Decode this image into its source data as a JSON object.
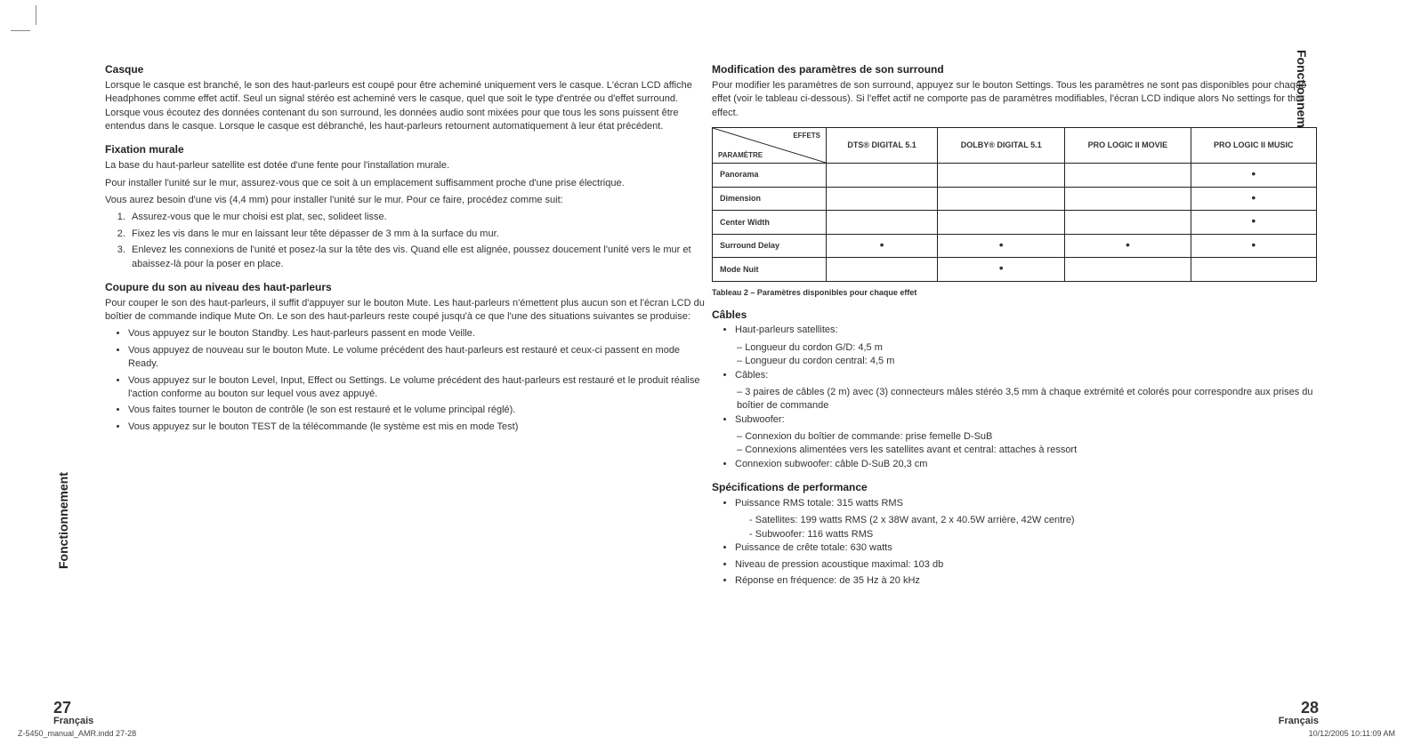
{
  "side_label": "Fonctionnement",
  "page_left_num": "27",
  "page_right_num": "28",
  "page_lang": "Français",
  "footer_left": "Z-5450_manual_AMR.indd   27-28",
  "footer_right": "10/12/2005   10:11:09 AM",
  "left": {
    "casque_h": "Casque",
    "casque_p": "Lorsque le casque est branché, le son des haut-parleurs est coupé pour être acheminé uniquement vers le casque. L'écran LCD affiche Headphones comme effet actif. Seul un signal stéréo est acheminé vers le casque, quel que soit le type d'entrée ou d'effet surround. Lorsque vous écoutez des données contenant du son surround, les données audio sont mixées pour que tous les sons puissent être entendus dans le casque. Lorsque le casque est débranché, les haut-parleurs retournent automatiquement à leur état précédent.",
    "fix_h": "Fixation murale",
    "fix_p1": "La base du haut-parleur satellite est dotée d'une fente pour l'installation murale.",
    "fix_p2": "Pour installer l'unité sur le mur, assurez-vous que ce soit à un emplacement suffisamment proche d'une prise électrique.",
    "fix_p3": "Vous aurez besoin d'une vis (4,4 mm) pour installer l'unité sur le mur. Pour ce faire, procédez comme suit:",
    "fix_li1": "Assurez-vous que le mur choisi est plat, sec, solideet lisse.",
    "fix_li2": "Fixez les vis dans le mur en laissant leur tête dépasser de 3 mm à la surface du mur.",
    "fix_li3": "Enlevez les connexions de l'unité et posez-la sur la tête des vis. Quand elle est alignée, poussez doucement l'unité vers le mur et abaissez-là pour la poser en place.",
    "coup_h": "Coupure du son au niveau des haut-parleurs",
    "coup_p": "Pour couper le son des haut-parleurs, il suffit d'appuyer sur le bouton Mute. Les haut-parleurs n'émettent plus aucun son et l'écran LCD du boîtier de commande indique Mute On. Le son des haut-parleurs reste coupé jusqu'à ce que l'une des situations suivantes se produise:",
    "coup_li1": "Vous appuyez sur le bouton Standby. Les haut-parleurs passent en mode Veille.",
    "coup_li2": "Vous appuyez de nouveau sur le bouton Mute. Le volume précédent des haut-parleurs est restauré et ceux-ci passent en mode Ready.",
    "coup_li3": "Vous appuyez sur le bouton Level, Input, Effect ou Settings. Le volume précédent des haut-parleurs est restauré et le produit réalise l'action conforme au bouton sur lequel vous avez appuyé.",
    "coup_li4": "Vous faites tourner le bouton de contrôle (le son est restauré et le volume principal réglé).",
    "coup_li5": "Vous appuyez sur le bouton TEST de la télécommande (le système est mis en mode Test)"
  },
  "right": {
    "mod_h": "Modification des paramètres de son surround",
    "mod_p": "Pour modifier les paramètres de son surround, appuyez sur le bouton Settings. Tous les paramètres ne sont pas disponibles pour chaque effet (voir le tableau ci-dessous). Si l'effet actif ne comporte pas de paramètres modifiables, l'écran LCD indique alors No settings for this effect.",
    "table": {
      "diag_top": "EFFETS",
      "diag_bot": "PARAMÈTRE",
      "cols": [
        "DTS® DIGITAL 5.1",
        "DOLBY® DIGITAL 5.1",
        "PRO LOGIC II MOVIE",
        "PRO LOGIC II MUSIC"
      ],
      "rows": [
        {
          "label": "Panorama",
          "vals": [
            "",
            "",
            "",
            "•"
          ]
        },
        {
          "label": "Dimension",
          "vals": [
            "",
            "",
            "",
            "•"
          ]
        },
        {
          "label": "Center Width",
          "vals": [
            "",
            "",
            "",
            "•"
          ]
        },
        {
          "label": "Surround Delay",
          "vals": [
            "•",
            "•",
            "•",
            "•"
          ]
        },
        {
          "label": "Mode Nuit",
          "vals": [
            "",
            "•",
            "",
            ""
          ]
        }
      ],
      "caption": "Tableau 2 – Paramètres disponibles pour chaque effet"
    },
    "cables_h": "Câbles",
    "cables_b1": "Haut-parleurs satellites:",
    "cables_b1_s1": "Longueur du cordon G/D: 4,5 m",
    "cables_b1_s2": "Longueur du cordon central: 4,5 m",
    "cables_b2": "Câbles:",
    "cables_b2_s1": "3 paires de câbles (2 m) avec (3) connecteurs mâles stéréo 3,5 mm à chaque extrémité et colorés pour correspondre aux prises du boîtier de commande",
    "cables_b3": "Subwoofer:",
    "cables_b3_s1": "Connexion du boîtier de commande: prise femelle D-SuB",
    "cables_b3_s2": "Connexions alimentées vers les satellites avant et central: attaches à ressort",
    "cables_b4": "Connexion subwoofer: câble D-SuB 20,3 cm",
    "spec_h": "Spécifications de performance",
    "spec_b1": "Puissance RMS totale: 315 watts RMS",
    "spec_b1_s1": "Satellites: 199 watts RMS (2 x 38W avant, 2 x 40.5W arrière, 42W centre)",
    "spec_b1_s2": "Subwoofer: 116 watts RMS",
    "spec_b2": "Puissance de crête totale: 630 watts",
    "spec_b3": "Niveau de pression acoustique maximal: 103 db",
    "spec_b4": "Réponse en fréquence: de 35 Hz à 20 kHz"
  }
}
